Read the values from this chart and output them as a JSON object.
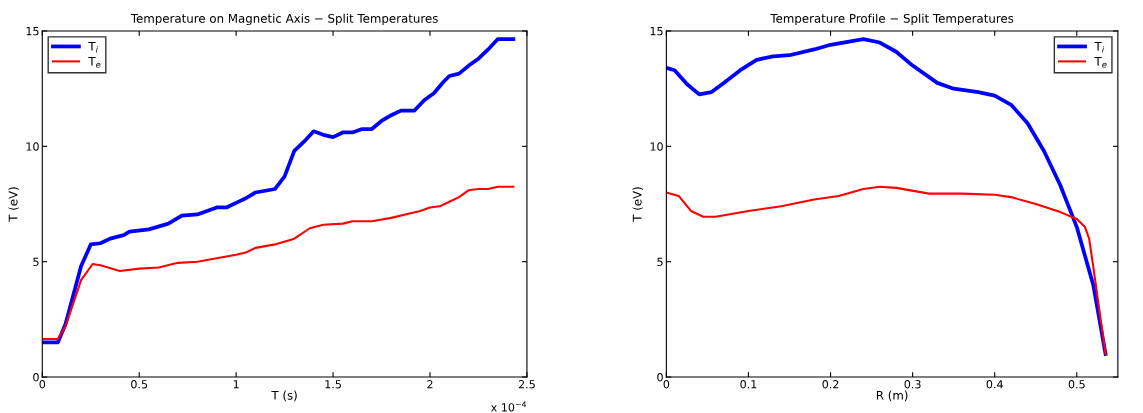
{
  "chart_data": [
    {
      "type": "line",
      "title": "Temperature on Magnetic Axis − Split Temperatures",
      "xlabel": "T (s)",
      "ylabel": "T (eV)",
      "annotations": [
        "x 10$^{−4}$"
      ],
      "xlim": [
        0,
        2.5
      ],
      "xticks": [
        0,
        0.5,
        1,
        1.5,
        2,
        2.5
      ],
      "ylim": [
        0,
        15
      ],
      "yticks": [
        0,
        5,
        10,
        15
      ],
      "grid": false,
      "legend": "top left",
      "line_style": "solid",
      "marker": "none",
      "series": [
        {
          "name": "T$_{i}$",
          "color": "#0000ff",
          "x": [
            0,
            0.08,
            0.12,
            0.2,
            0.25,
            0.3,
            0.35,
            0.42,
            0.45,
            0.55,
            0.65,
            0.72,
            0.8,
            0.9,
            0.95,
            1.0,
            1.05,
            1.1,
            1.2,
            1.25,
            1.3,
            1.35,
            1.4,
            1.45,
            1.5,
            1.55,
            1.6,
            1.65,
            1.7,
            1.75,
            1.8,
            1.85,
            1.92,
            1.97,
            2.02,
            2.07,
            2.1,
            2.15,
            2.2,
            2.25,
            2.3,
            2.35,
            2.43
          ],
          "values": [
            1.5,
            1.5,
            2.3,
            4.8,
            5.75,
            5.8,
            6.0,
            6.15,
            6.3,
            6.4,
            6.65,
            7.0,
            7.05,
            7.35,
            7.35,
            7.55,
            7.75,
            8.0,
            8.15,
            8.7,
            9.8,
            10.2,
            10.65,
            10.5,
            10.4,
            10.6,
            10.6,
            10.75,
            10.75,
            11.1,
            11.35,
            11.55,
            11.55,
            12.0,
            12.3,
            12.8,
            13.05,
            13.15,
            13.5,
            13.8,
            14.2,
            14.65,
            14.65
          ]
        },
        {
          "name": "T$_{e}$",
          "color": "#ff0000",
          "x": [
            0,
            0.08,
            0.12,
            0.2,
            0.26,
            0.3,
            0.4,
            0.5,
            0.6,
            0.7,
            0.8,
            0.9,
            1.0,
            1.05,
            1.1,
            1.2,
            1.3,
            1.38,
            1.45,
            1.55,
            1.6,
            1.7,
            1.8,
            1.9,
            1.95,
            2.0,
            2.05,
            2.1,
            2.15,
            2.2,
            2.25,
            2.3,
            2.35,
            2.43
          ],
          "values": [
            1.65,
            1.65,
            2.2,
            4.2,
            4.9,
            4.85,
            4.6,
            4.7,
            4.75,
            4.95,
            5.0,
            5.15,
            5.3,
            5.4,
            5.6,
            5.75,
            6.0,
            6.45,
            6.6,
            6.65,
            6.75,
            6.75,
            6.9,
            7.1,
            7.2,
            7.35,
            7.4,
            7.6,
            7.8,
            8.1,
            8.15,
            8.15,
            8.25,
            8.25
          ]
        }
      ]
    },
    {
      "type": "line",
      "title": "Temperature Profile − Split Temperatures",
      "xlabel": "R (m)",
      "ylabel": "T (eV)",
      "xlim": [
        0,
        0.55
      ],
      "xticks": [
        0,
        0.1,
        0.2,
        0.3,
        0.4,
        0.5
      ],
      "ylim": [
        0,
        15
      ],
      "yticks": [
        0,
        5,
        10,
        15
      ],
      "grid": false,
      "legend": "top right",
      "line_style": "solid",
      "marker": "none",
      "series": [
        {
          "name": "T$_{i}$",
          "color": "#0000ff",
          "x": [
            0,
            0.01,
            0.025,
            0.04,
            0.055,
            0.07,
            0.09,
            0.11,
            0.13,
            0.15,
            0.18,
            0.2,
            0.24,
            0.26,
            0.28,
            0.3,
            0.33,
            0.35,
            0.38,
            0.4,
            0.42,
            0.44,
            0.46,
            0.48,
            0.5,
            0.52,
            0.535
          ],
          "values": [
            13.4,
            13.3,
            12.7,
            12.25,
            12.35,
            12.75,
            13.3,
            13.75,
            13.9,
            13.95,
            14.2,
            14.4,
            14.65,
            14.5,
            14.1,
            13.5,
            12.75,
            12.5,
            12.35,
            12.2,
            11.8,
            11.0,
            9.8,
            8.3,
            6.5,
            4.0,
            1.0
          ]
        },
        {
          "name": "T$_{e}$",
          "color": "#ff0000",
          "x": [
            0,
            0.015,
            0.03,
            0.045,
            0.06,
            0.1,
            0.14,
            0.18,
            0.21,
            0.24,
            0.26,
            0.28,
            0.32,
            0.36,
            0.4,
            0.42,
            0.45,
            0.48,
            0.5,
            0.51,
            0.515,
            0.52,
            0.535
          ],
          "values": [
            8.0,
            7.85,
            7.2,
            6.95,
            6.95,
            7.2,
            7.4,
            7.7,
            7.85,
            8.15,
            8.25,
            8.2,
            7.95,
            7.95,
            7.9,
            7.8,
            7.5,
            7.15,
            6.85,
            6.5,
            6.0,
            4.8,
            1.0
          ]
        }
      ]
    }
  ]
}
